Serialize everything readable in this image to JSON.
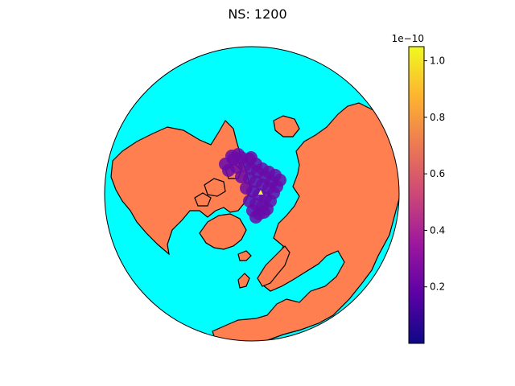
{
  "figure": {
    "title": "NS: 1200"
  },
  "map": {
    "projection": "orthographic",
    "center": "north-pole",
    "ocean_color": "#00ffff",
    "land_color": "#ff7f50",
    "coastline_color": "#000000"
  },
  "colorbar": {
    "colormap": "plasma",
    "min": 0.0,
    "max": 1.05,
    "exponent_label": "1e−10",
    "tick_values": [
      0.2,
      0.4,
      0.6,
      0.8,
      1.0
    ],
    "tick_labels": [
      "0.2",
      "0.4",
      "0.6",
      "0.8",
      "1.0"
    ],
    "colors": [
      "#0d0887",
      "#5c01a6",
      "#9c179e",
      "#cc4778",
      "#ed7953",
      "#fdb42f",
      "#f0f921"
    ]
  },
  "overlay": {
    "scatter_color": "#6a0aa8",
    "marker_color": "#f0f921"
  }
}
